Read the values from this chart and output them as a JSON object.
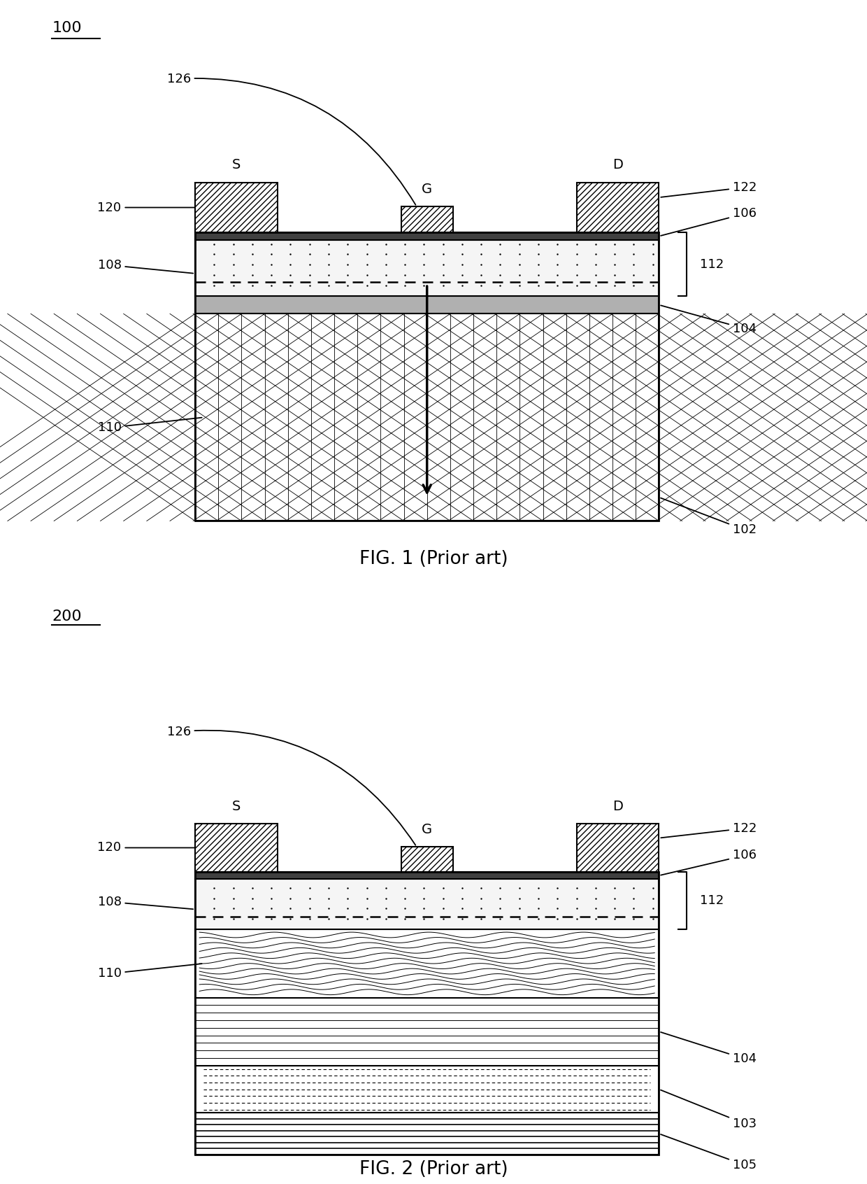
{
  "fig1": {
    "label": "100",
    "caption": "FIG. 1 (Prior art)"
  },
  "fig2": {
    "label": "200",
    "caption": "FIG. 2 (Prior art)"
  }
}
